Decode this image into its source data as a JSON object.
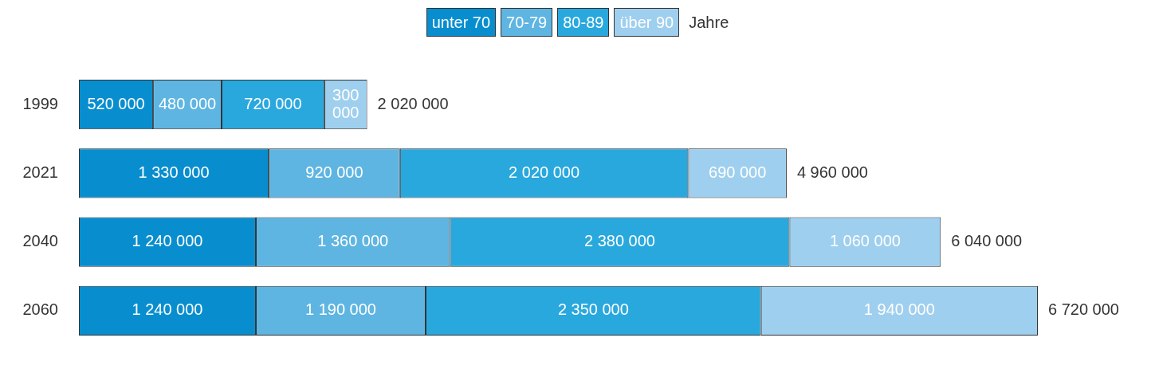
{
  "chart_data": {
    "type": "bar",
    "orientation": "horizontal",
    "stacked": true,
    "data_labels": true,
    "legend": "top",
    "legend_title": "Jahre",
    "tick_labels": "y",
    "categories": [
      "1999",
      "2021",
      "2040",
      "2060"
    ],
    "series": [
      {
        "name": "unter 70",
        "color": "#088ecf",
        "values": [
          520000,
          1330000,
          1240000,
          1240000
        ]
      },
      {
        "name": "70-79",
        "color": "#5eb5e2",
        "values": [
          480000,
          920000,
          1360000,
          1190000
        ]
      },
      {
        "name": "80-89",
        "color": "#29a8de",
        "values": [
          720000,
          2020000,
          2380000,
          2350000
        ]
      },
      {
        "name": "über 90",
        "color": "#9fcfee",
        "values": [
          300000,
          690000,
          1060000,
          1940000
        ]
      }
    ],
    "totals": [
      "2 020 000",
      "4 960 000",
      "6 040 000",
      "6 720 000"
    ]
  }
}
